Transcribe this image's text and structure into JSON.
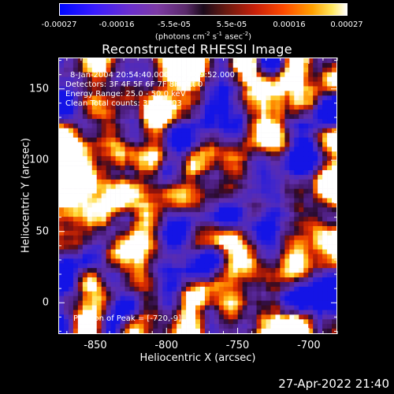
{
  "colorbar": {
    "ticks": [
      "-0.00027",
      "-0.00016",
      "-5.5e-05",
      "5.5e-05",
      "0.00016",
      "0.00027"
    ],
    "units_prefix": "(photons cm",
    "units_sup1": "-2",
    "units_mid1": " s",
    "units_sup2": "-1",
    "units_mid2": " asec",
    "units_sup3": "-2",
    "units_suffix": ")"
  },
  "title": "Reconstructed RHESSI Image",
  "annotations": {
    "time_range": "8-Jan-2004 20:54:40.000 to 20:59:52.000",
    "detectors": "Detectors: 3F 4F 5F 6F 7F 8F, Att 0",
    "energy": "Energy Range: 25.0 - 50.0 keV",
    "method": "Clean    Total counts: 3.67E+03",
    "peak": "Position of Peak = [-720,-9]"
  },
  "axes": {
    "x_label": "Heliocentric X (arcsec)",
    "y_label": "Heliocentric Y (arcsec)",
    "x_ticks": [
      {
        "label": "-850",
        "value": -850
      },
      {
        "label": "-800",
        "value": -800
      },
      {
        "label": "-750",
        "value": -750
      },
      {
        "label": "-700",
        "value": -700
      }
    ],
    "y_ticks": [
      {
        "label": "0",
        "value": 0
      },
      {
        "label": "50",
        "value": 50
      },
      {
        "label": "100",
        "value": 100
      },
      {
        "label": "150",
        "value": 150
      }
    ],
    "x_range": [
      -876,
      -680
    ],
    "y_range": [
      -22,
      172
    ]
  },
  "timestamp": "27-Apr-2022 21:40",
  "colors": {
    "background": "#000000",
    "foreground": "#ffffff"
  }
}
